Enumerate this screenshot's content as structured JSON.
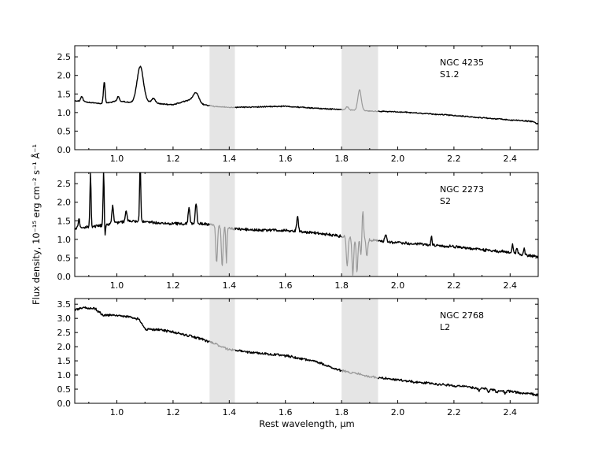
{
  "figure": {
    "xlabel": "Rest wavelength, μm",
    "ylabel": "Flux density, 10⁻¹⁵  erg  cm⁻²  s⁻¹  Å⁻¹"
  },
  "chart_data": [
    {
      "type": "line",
      "object": "NGC 4235",
      "classification": "S1.2",
      "xlim": [
        0.85,
        2.5
      ],
      "ylim": [
        0.0,
        2.8
      ],
      "xticks": [
        1.0,
        1.2,
        1.4,
        1.6,
        1.8,
        2.0,
        2.2,
        2.4
      ],
      "yticks": [
        0.0,
        0.5,
        1.0,
        1.5,
        2.0,
        2.5
      ],
      "shaded_regions": [
        [
          1.33,
          1.42
        ],
        [
          1.8,
          1.93
        ]
      ],
      "continuum": [
        [
          0.85,
          1.32
        ],
        [
          0.9,
          1.27
        ],
        [
          0.95,
          1.24
        ],
        [
          1.0,
          1.31
        ],
        [
          1.05,
          1.27
        ],
        [
          1.1,
          1.3
        ],
        [
          1.15,
          1.24
        ],
        [
          1.2,
          1.21
        ],
        [
          1.26,
          1.34
        ],
        [
          1.3,
          1.22
        ],
        [
          1.35,
          1.16
        ],
        [
          1.4,
          1.14
        ],
        [
          1.5,
          1.15
        ],
        [
          1.6,
          1.17
        ],
        [
          1.7,
          1.12
        ],
        [
          1.8,
          1.08
        ],
        [
          1.9,
          1.04
        ],
        [
          2.0,
          1.02
        ],
        [
          2.1,
          0.97
        ],
        [
          2.2,
          0.92
        ],
        [
          2.3,
          0.86
        ],
        [
          2.4,
          0.8
        ],
        [
          2.48,
          0.76
        ],
        [
          2.5,
          0.68
        ]
      ],
      "features": [
        {
          "x": 0.875,
          "height": 0.14,
          "width": 0.004
        },
        {
          "x": 0.955,
          "height": 0.58,
          "width": 0.003
        },
        {
          "x": 1.005,
          "height": 0.12,
          "width": 0.004
        },
        {
          "x": 1.083,
          "height": 0.95,
          "width": 0.011
        },
        {
          "x": 1.13,
          "height": 0.12,
          "width": 0.006
        },
        {
          "x": 1.282,
          "height": 0.26,
          "width": 0.01
        },
        {
          "x": 1.864,
          "height": 0.55,
          "width": 0.006
        },
        {
          "x": 1.82,
          "height": 0.08,
          "width": 0.005
        }
      ],
      "noise": 0.012
    },
    {
      "type": "line",
      "object": "NGC 2273",
      "classification": "S2",
      "xlim": [
        0.85,
        2.5
      ],
      "ylim": [
        0.0,
        2.8
      ],
      "xticks": [
        1.0,
        1.2,
        1.4,
        1.6,
        1.8,
        2.0,
        2.2,
        2.4
      ],
      "yticks": [
        0.0,
        0.5,
        1.0,
        1.5,
        2.0,
        2.5
      ],
      "shaded_regions": [
        [
          1.33,
          1.42
        ],
        [
          1.8,
          1.93
        ]
      ],
      "continuum": [
        [
          0.85,
          1.28
        ],
        [
          0.9,
          1.33
        ],
        [
          0.95,
          1.38
        ],
        [
          1.0,
          1.45
        ],
        [
          1.05,
          1.5
        ],
        [
          1.1,
          1.48
        ],
        [
          1.15,
          1.44
        ],
        [
          1.2,
          1.42
        ],
        [
          1.3,
          1.42
        ],
        [
          1.35,
          1.38
        ],
        [
          1.42,
          1.28
        ],
        [
          1.5,
          1.25
        ],
        [
          1.6,
          1.24
        ],
        [
          1.7,
          1.18
        ],
        [
          1.8,
          1.08
        ],
        [
          1.9,
          0.98
        ],
        [
          2.0,
          0.9
        ],
        [
          2.1,
          0.86
        ],
        [
          2.2,
          0.8
        ],
        [
          2.3,
          0.72
        ],
        [
          2.4,
          0.65
        ],
        [
          2.5,
          0.52
        ]
      ],
      "features": [
        {
          "x": 0.865,
          "height": 0.25,
          "width": 0.003
        },
        {
          "x": 0.906,
          "height": 1.45,
          "width": 0.002
        },
        {
          "x": 0.953,
          "height": 1.5,
          "width": 0.002
        },
        {
          "x": 0.957,
          "height": -0.35,
          "width": 0.002
        },
        {
          "x": 0.985,
          "height": 0.45,
          "width": 0.003
        },
        {
          "x": 1.033,
          "height": 0.3,
          "width": 0.003
        },
        {
          "x": 1.083,
          "height": 1.6,
          "width": 0.002
        },
        {
          "x": 1.257,
          "height": 0.45,
          "width": 0.003
        },
        {
          "x": 1.282,
          "height": 0.55,
          "width": 0.003
        },
        {
          "x": 1.643,
          "height": 0.4,
          "width": 0.003
        },
        {
          "x": 1.875,
          "height": 0.85,
          "width": 0.003
        },
        {
          "x": 1.957,
          "height": 0.2,
          "width": 0.003
        },
        {
          "x": 2.12,
          "height": 0.25,
          "width": 0.002
        },
        {
          "x": 2.409,
          "height": 0.22,
          "width": 0.002
        },
        {
          "x": 2.424,
          "height": 0.18,
          "width": 0.002
        },
        {
          "x": 2.45,
          "height": 0.2,
          "width": 0.002
        },
        {
          "x": 1.355,
          "height": -1.0,
          "width": 0.003
        },
        {
          "x": 1.375,
          "height": -1.05,
          "width": 0.003
        },
        {
          "x": 1.39,
          "height": -0.95,
          "width": 0.002
        },
        {
          "x": 1.82,
          "height": -0.8,
          "width": 0.003
        },
        {
          "x": 1.84,
          "height": -1.0,
          "width": 0.003
        },
        {
          "x": 1.855,
          "height": -0.9,
          "width": 0.003
        },
        {
          "x": 1.87,
          "height": -0.55,
          "width": 0.003
        },
        {
          "x": 1.89,
          "height": -0.45,
          "width": 0.003
        }
      ],
      "noise": 0.03
    },
    {
      "type": "line",
      "object": "NGC 2768",
      "classification": "L2",
      "xlim": [
        0.85,
        2.5
      ],
      "ylim": [
        0.0,
        3.7
      ],
      "xticks": [
        1.0,
        1.2,
        1.4,
        1.6,
        1.8,
        2.0,
        2.2,
        2.4
      ],
      "yticks": [
        0.0,
        0.5,
        1.0,
        1.5,
        2.0,
        2.5,
        3.0,
        3.5
      ],
      "shaded_regions": [
        [
          1.33,
          1.42
        ],
        [
          1.8,
          1.93
        ]
      ],
      "continuum": [
        [
          0.85,
          3.3
        ],
        [
          0.88,
          3.38
        ],
        [
          0.92,
          3.35
        ],
        [
          0.95,
          3.12
        ],
        [
          1.0,
          3.1
        ],
        [
          1.05,
          3.05
        ],
        [
          1.08,
          2.95
        ],
        [
          1.1,
          2.62
        ],
        [
          1.15,
          2.6
        ],
        [
          1.2,
          2.52
        ],
        [
          1.3,
          2.28
        ],
        [
          1.4,
          1.9
        ],
        [
          1.5,
          1.78
        ],
        [
          1.6,
          1.68
        ],
        [
          1.7,
          1.5
        ],
        [
          1.8,
          1.15
        ],
        [
          1.9,
          0.95
        ],
        [
          2.0,
          0.82
        ],
        [
          2.1,
          0.72
        ],
        [
          2.2,
          0.62
        ],
        [
          2.3,
          0.52
        ],
        [
          2.4,
          0.42
        ],
        [
          2.5,
          0.3
        ]
      ],
      "features": [
        {
          "x": 2.29,
          "height": -0.1,
          "width": 0.003
        },
        {
          "x": 2.323,
          "height": -0.12,
          "width": 0.003
        },
        {
          "x": 2.352,
          "height": -0.08,
          "width": 0.003
        },
        {
          "x": 2.382,
          "height": -0.08,
          "width": 0.003
        }
      ],
      "noise": 0.035
    }
  ]
}
